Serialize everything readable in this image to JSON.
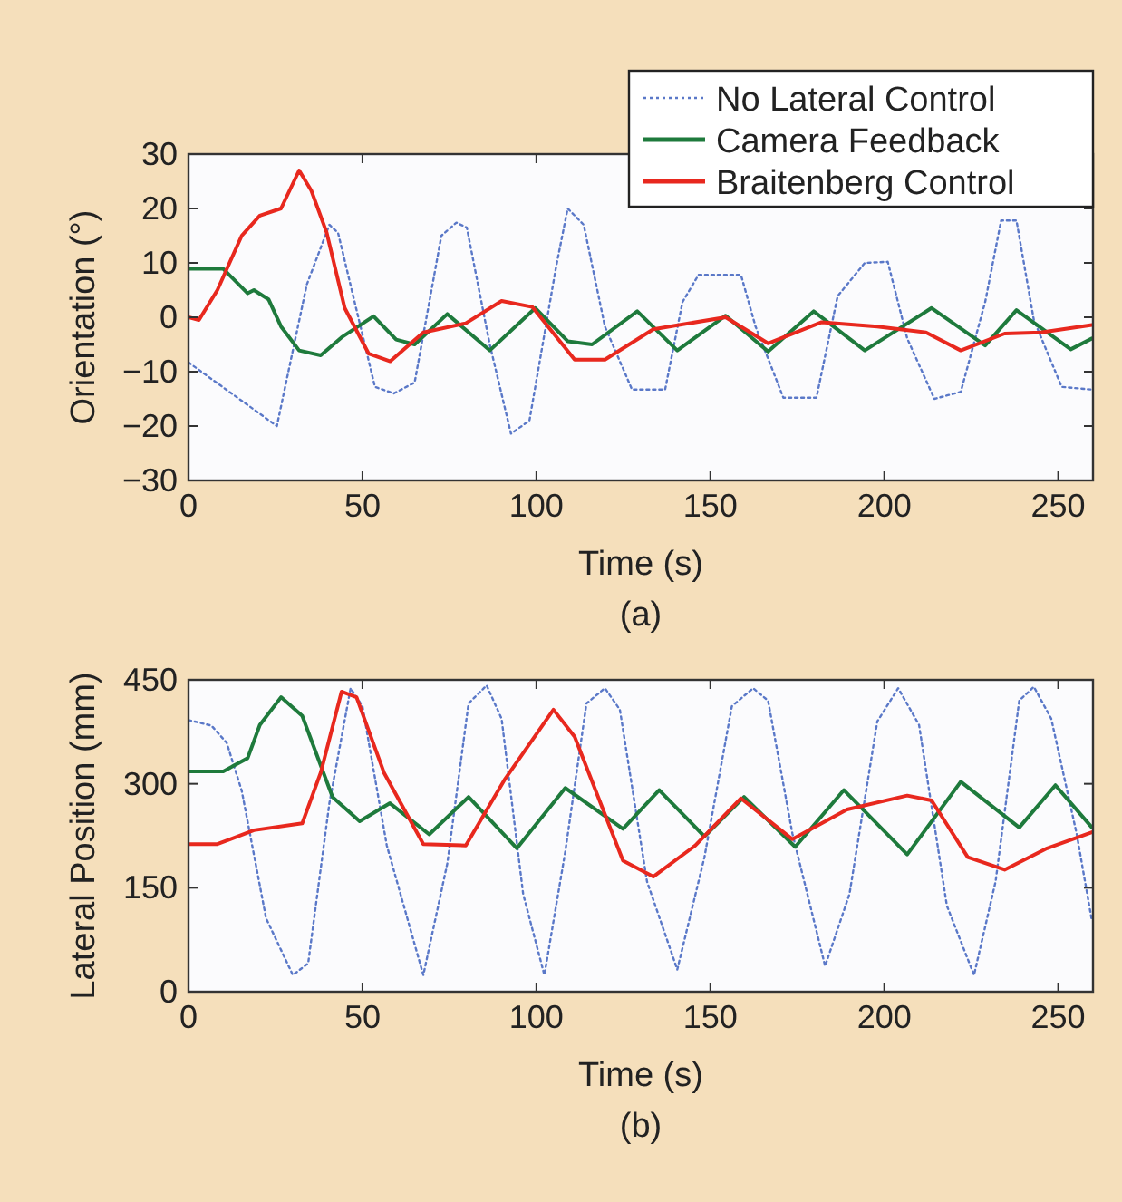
{
  "chart_data": [
    {
      "type": "line",
      "xlabel": "Time (s)",
      "ylabel": "Orientation (°)",
      "annotations": [
        "(a)"
      ],
      "xlim": [
        0,
        260
      ],
      "xticks": [
        0,
        50,
        100,
        150,
        200,
        250
      ],
      "ylim": [
        -30,
        30
      ],
      "yticks": [
        {
          "value": -30,
          "label": "−30"
        },
        {
          "value": -20,
          "label": "−20"
        },
        {
          "value": -10,
          "label": "−10"
        },
        0,
        10,
        20,
        30
      ],
      "grid": false,
      "legend": "top right",
      "marker": "none",
      "series": [
        {
          "name": "No Lateral Control",
          "color": "#5a78c8",
          "line_style": "dotted",
          "x": [
            0,
            25.4,
            34,
            40.5,
            43,
            53.6,
            59,
            65,
            72.7,
            77,
            80,
            86.6,
            92.7,
            98,
            105.7,
            109,
            113.6,
            119.7,
            127.5,
            137,
            142,
            146.6,
            158.8,
            163,
            171,
            180.5,
            186.6,
            194.4,
            201,
            206.6,
            214.4,
            222,
            229,
            233.6,
            238,
            243,
            251,
            259.7
          ],
          "values": [
            -8.3,
            -20,
            6,
            17,
            15.5,
            -12.8,
            -14,
            -12,
            15,
            17.4,
            16.5,
            -5,
            -21.4,
            -19,
            9.4,
            20,
            17,
            -1.7,
            -13.3,
            -13.3,
            2.8,
            7.8,
            7.8,
            -1.7,
            -14.8,
            -14.8,
            3.9,
            10,
            10.2,
            -3.9,
            -15,
            -13.7,
            2.8,
            17.8,
            17.8,
            -0.5,
            -12.8,
            -13.3
          ]
        },
        {
          "name": "Camera Feedback",
          "color": "#1e7a3c",
          "line_style": "solid",
          "x": [
            0,
            10,
            17,
            18.8,
            23,
            26.6,
            31.8,
            38,
            44,
            53.2,
            59.7,
            65,
            74.4,
            86.6,
            99.7,
            109,
            116,
            129,
            140.5,
            154.4,
            166.6,
            179.7,
            194.4,
            213.6,
            229,
            238,
            253.6,
            259.7
          ],
          "values": [
            8.9,
            8.9,
            4.4,
            5,
            3.3,
            -1.7,
            -6.1,
            -7,
            -3.7,
            0.2,
            -4.1,
            -5,
            0.6,
            -6.1,
            1.7,
            -4.4,
            -5,
            1.1,
            -6.1,
            0.3,
            -6.3,
            1.1,
            -6.1,
            1.7,
            -5.2,
            1.3,
            -5.9,
            -3.9
          ]
        },
        {
          "name": "Braitenberg Control",
          "color": "#e8281e",
          "line_style": "solid",
          "x": [
            0,
            3,
            8.3,
            15.3,
            20.5,
            26.6,
            31.8,
            35.3,
            39.7,
            44.9,
            51.8,
            58,
            67.5,
            79.7,
            90,
            98.8,
            111,
            119.7,
            133.6,
            154.4,
            166.6,
            182,
            198,
            212,
            222,
            234.6,
            245,
            259.7
          ],
          "values": [
            0,
            -0.5,
            5,
            15,
            18.7,
            20,
            27,
            23.3,
            15.6,
            1.7,
            -6.7,
            -8.1,
            -2.8,
            -1.1,
            3,
            1.9,
            -7.8,
            -7.8,
            -2.2,
            0,
            -4.8,
            -0.9,
            -1.7,
            -2.8,
            -6.1,
            -3,
            -2.8,
            -1.4
          ]
        }
      ]
    },
    {
      "type": "line",
      "xlabel": "Time (s)",
      "ylabel": "Lateral Position (mm)",
      "annotations": [
        "(b)"
      ],
      "xlim": [
        0,
        260
      ],
      "xticks": [
        0,
        50,
        100,
        150,
        200,
        250
      ],
      "ylim": [
        0,
        450
      ],
      "yticks": [
        0,
        150,
        300,
        450
      ],
      "grid": false,
      "legend": false,
      "marker": "none",
      "series": [
        {
          "color": "#5a78c8",
          "line_style": "dotted",
          "x": [
            0,
            6.6,
            11,
            15.3,
            22.3,
            30,
            34.4,
            40.5,
            46.6,
            50,
            57,
            67.5,
            74.4,
            80.5,
            85.7,
            90,
            96.2,
            102.3,
            108.3,
            114.4,
            119.7,
            124,
            131.8,
            140.5,
            148.3,
            156.2,
            162.3,
            166.6,
            173.6,
            183,
            190,
            198,
            204,
            210,
            218,
            225.8,
            232,
            238.8,
            243,
            248,
            255.3,
            259.7
          ],
          "values": [
            392,
            384,
            359,
            290,
            106,
            24,
            41,
            272,
            438,
            412,
            211,
            24,
            185,
            416,
            442,
            394,
            141,
            24,
            202,
            416,
            438,
            407,
            159,
            32,
            194,
            412,
            438,
            420,
            228,
            37,
            141,
            390,
            438,
            385,
            124,
            24,
            159,
            420,
            440,
            394,
            228,
            102
          ]
        },
        {
          "color": "#1e7a3c",
          "line_style": "solid",
          "x": [
            0,
            10,
            17,
            20.5,
            26.6,
            32.7,
            41.4,
            49.2,
            57.9,
            69.2,
            80.5,
            94.4,
            108.3,
            124.9,
            135.3,
            148.3,
            159.7,
            174.4,
            188.4,
            206.6,
            222,
            238.8,
            249.2,
            259.7
          ],
          "values": [
            318,
            318,
            337,
            385,
            425,
            398,
            281,
            246,
            272,
            227,
            281,
            207,
            294,
            235,
            291,
            224,
            281,
            209,
            291,
            198,
            303,
            237,
            298,
            237
          ]
        },
        {
          "color": "#e8281e",
          "line_style": "solid",
          "x": [
            0,
            8.3,
            18.8,
            32.7,
            38,
            44,
            48.3,
            56.2,
            67.5,
            79.7,
            91,
            104.9,
            111,
            124.9,
            133.6,
            145.7,
            158.8,
            173.6,
            189.3,
            206.6,
            213.6,
            224,
            234.6,
            246.8,
            259.7
          ],
          "values": [
            213,
            213,
            233,
            243,
            316,
            433,
            425,
            316,
            213,
            211,
            307,
            407,
            368,
            189,
            166,
            211,
            279,
            220,
            263,
            283,
            276,
            194,
            176,
            207,
            230
          ]
        }
      ]
    }
  ]
}
